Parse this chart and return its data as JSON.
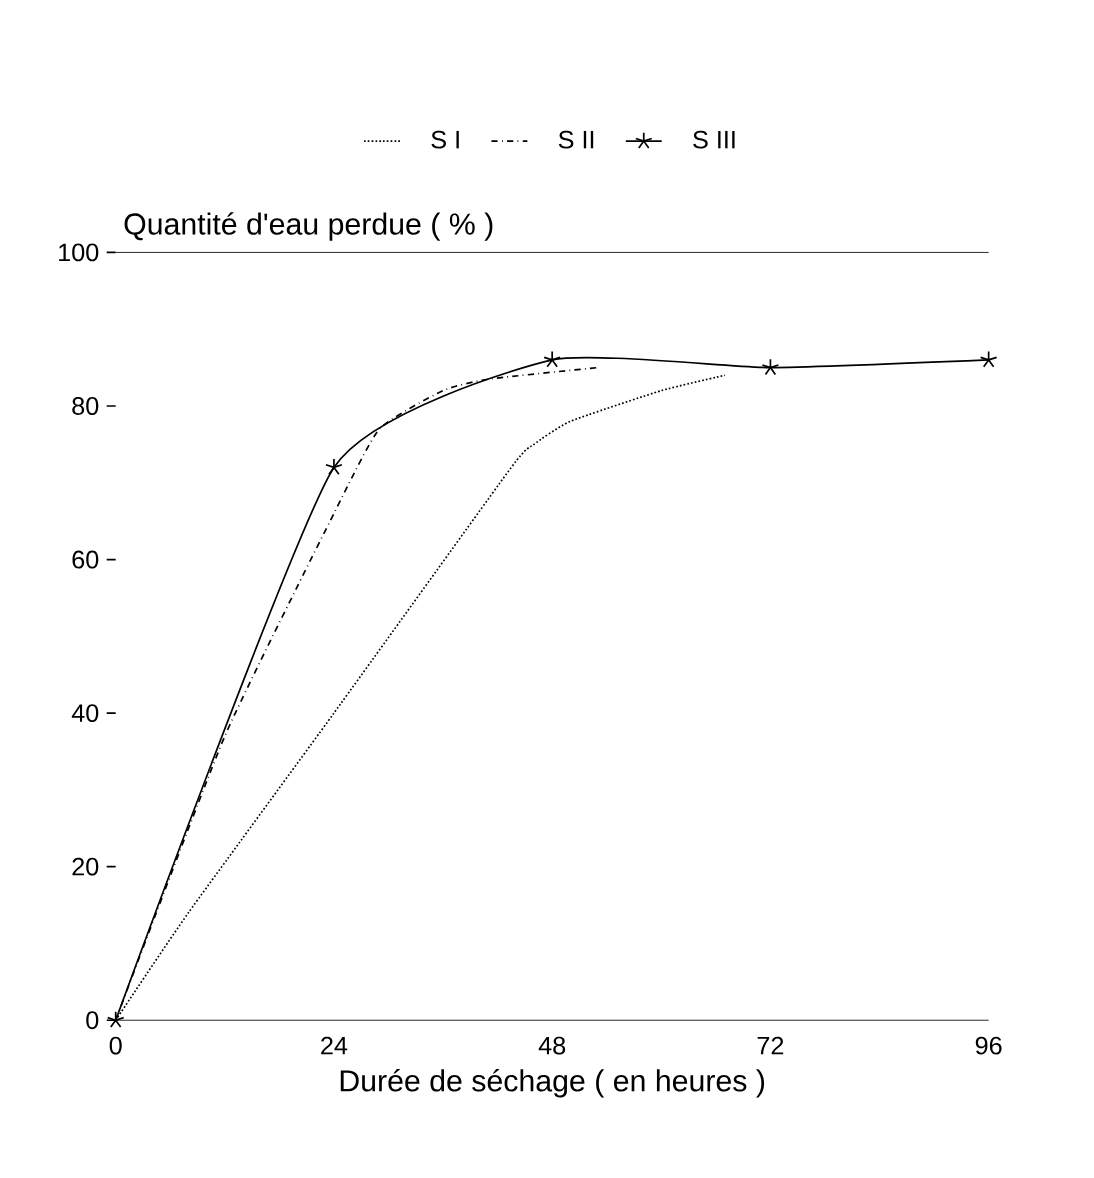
{
  "chart_data": {
    "type": "line",
    "xlabel": "Durée de séchage ( en heures )",
    "ylabel": "Quantité d'eau perdue ( % )",
    "xlim": [
      0,
      96
    ],
    "xticks": [
      0,
      24,
      48,
      72,
      96
    ],
    "ylim": [
      0,
      100
    ],
    "yticks": [
      0,
      20,
      40,
      60,
      80,
      100
    ],
    "grid": false,
    "legend": "top",
    "series": [
      {
        "name": "S I",
        "color": "#000000",
        "line_style": "dotted",
        "marker": "none",
        "x": [
          0,
          8,
          24,
          43.5,
          46,
          50,
          60,
          67
        ],
        "values": [
          0,
          14,
          40,
          72,
          75,
          78,
          82,
          84
        ]
      },
      {
        "name": "S II",
        "color": "#000000",
        "line_style": "dashed",
        "marker": "none",
        "x": [
          0,
          12,
          24,
          29,
          36,
          41,
          53
        ],
        "values": [
          0,
          37,
          66,
          77,
          82,
          83.5,
          85
        ]
      },
      {
        "name": "S III",
        "color": "#000000",
        "line_style": "solid",
        "marker": "cross",
        "x": [
          0,
          24,
          48,
          72,
          96
        ],
        "values": [
          0,
          72,
          86,
          85,
          86
        ]
      }
    ]
  }
}
